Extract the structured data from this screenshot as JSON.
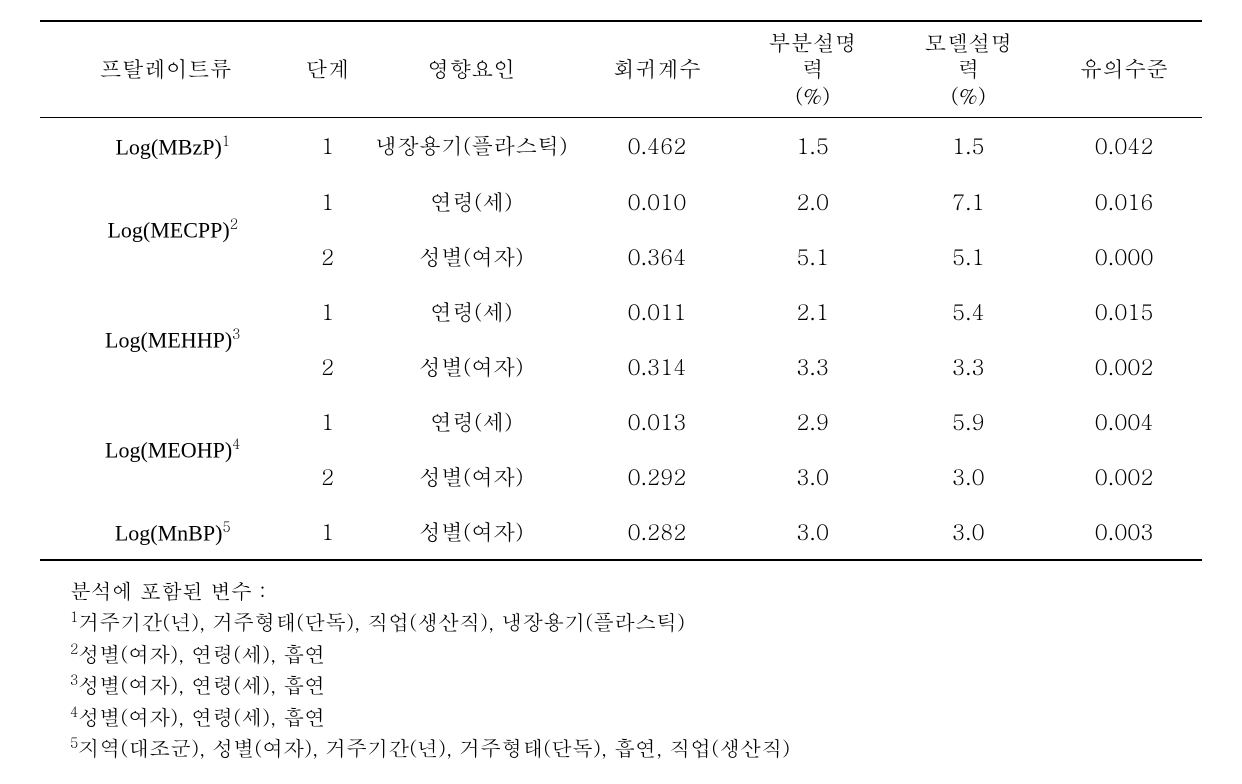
{
  "type": "table",
  "background_color": "#ffffff",
  "text_color": "#000000",
  "border_color": "#000000",
  "font_family_body": "Batang, serif",
  "font_family_log": "Times New Roman, serif",
  "font_size_table": 22,
  "font_size_footnote": 21,
  "border_top_width": 2,
  "border_header_width": 1.5,
  "border_bottom_width": 2,
  "headers": {
    "phthalate": "프탈레이트류",
    "step": "단계",
    "factor": "영향요인",
    "coef": "회귀계수",
    "partial_line1": "부분설명",
    "partial_line2": "력",
    "partial_line3": "(%)",
    "model_line1": "모델설명",
    "model_line2": "력",
    "model_line3": "(%)",
    "sig": "유의수준"
  },
  "column_widths_pct": [
    21,
    6,
    18,
    13,
    13,
    13,
    13
  ],
  "groups": [
    {
      "label_prefix": "Log(MBzP)",
      "label_sup": "1",
      "rows": [
        {
          "step": "1",
          "factor": "냉장용기(플라스틱)",
          "coef": "0.462",
          "partial": "1.5",
          "model": "1.5",
          "sig": "0.042"
        }
      ]
    },
    {
      "label_prefix": "Log(MECPP)",
      "label_sup": "2",
      "rows": [
        {
          "step": "1",
          "factor": "연령(세)",
          "coef": "0.010",
          "partial": "2.0",
          "model": "7.1",
          "sig": "0.016"
        },
        {
          "step": "2",
          "factor": "성별(여자)",
          "coef": "0.364",
          "partial": "5.1",
          "model": "5.1",
          "sig": "0.000"
        }
      ]
    },
    {
      "label_prefix": "Log(MEHHP)",
      "label_sup": "3",
      "rows": [
        {
          "step": "1",
          "factor": "연령(세)",
          "coef": "0.011",
          "partial": "2.1",
          "model": "5.4",
          "sig": "0.015"
        },
        {
          "step": "2",
          "factor": "성별(여자)",
          "coef": "0.314",
          "partial": "3.3",
          "model": "3.3",
          "sig": "0.002"
        }
      ]
    },
    {
      "label_prefix": "Log(MEOHP)",
      "label_sup": "4",
      "rows": [
        {
          "step": "1",
          "factor": "연령(세)",
          "coef": "0.013",
          "partial": "2.9",
          "model": "5.9",
          "sig": "0.004"
        },
        {
          "step": "2",
          "factor": "성별(여자)",
          "coef": "0.292",
          "partial": "3.0",
          "model": "3.0",
          "sig": "0.002"
        }
      ]
    },
    {
      "label_prefix": "Log(MnBP)",
      "label_sup": "5",
      "rows": [
        {
          "step": "1",
          "factor": "성별(여자)",
          "coef": "0.282",
          "partial": "3.0",
          "model": "3.0",
          "sig": "0.003"
        }
      ]
    }
  ],
  "footnotes": {
    "intro": "분석에 포함된 변수 :",
    "items": [
      {
        "sup": "1",
        "text": "거주기간(년), 거주형태(단독), 직업(생산직), 냉장용기(플라스틱)"
      },
      {
        "sup": "2",
        "text": "성별(여자), 연령(세), 흡연"
      },
      {
        "sup": "3",
        "text": "성별(여자), 연령(세), 흡연"
      },
      {
        "sup": "4",
        "text": "성별(여자), 연령(세), 흡연"
      },
      {
        "sup": "5",
        "text": "지역(대조군), 성별(여자), 거주기간(년), 거주형태(단독), 흡연, 직업(생산직)"
      }
    ]
  }
}
